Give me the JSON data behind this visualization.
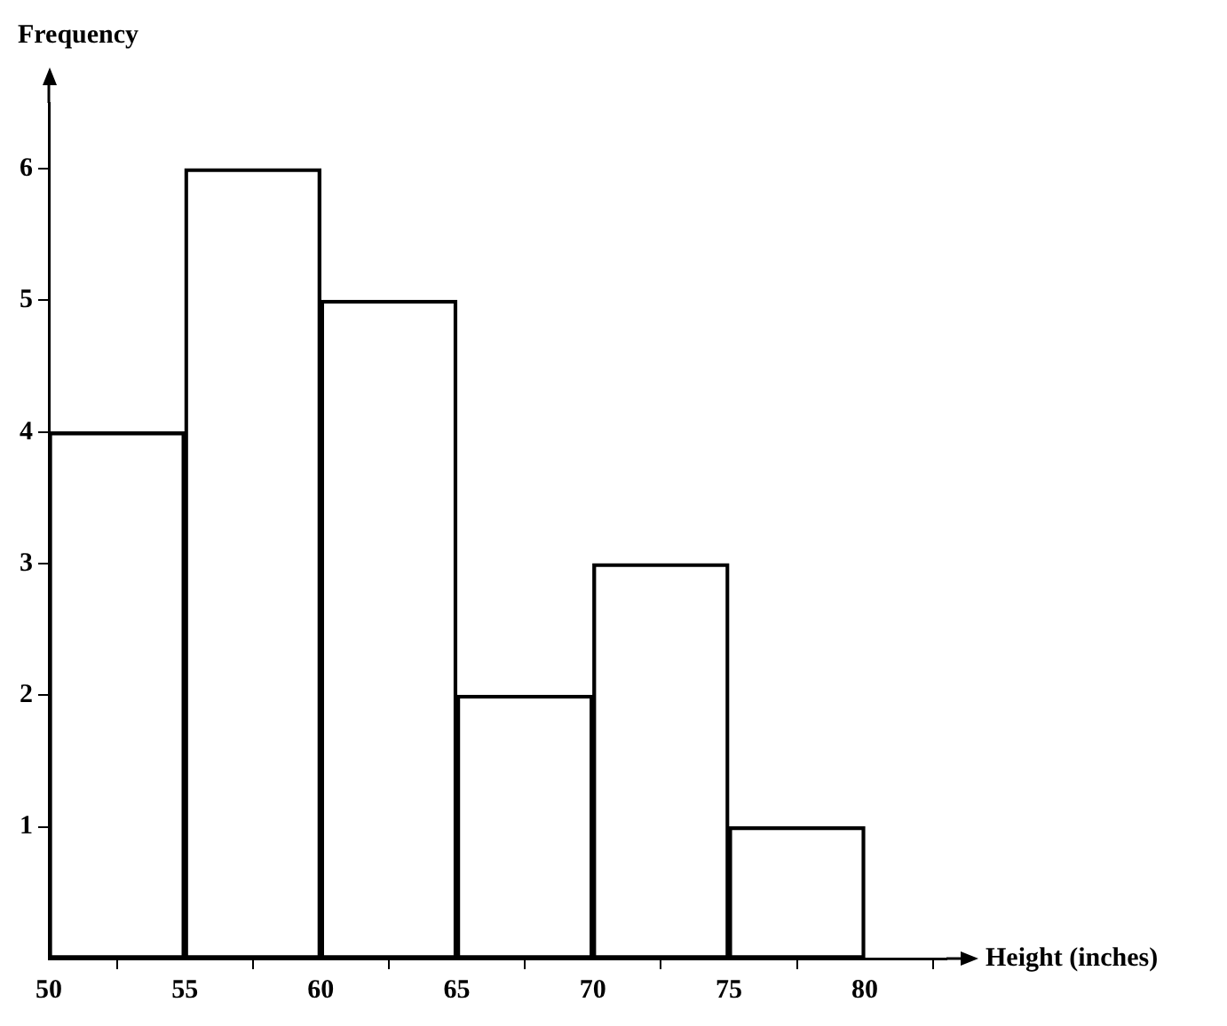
{
  "chart_data": {
    "type": "histogram",
    "xlabel": "Height (inches)",
    "ylabel": "Frequency",
    "bins": [
      50,
      55,
      60,
      65,
      70,
      75,
      80
    ],
    "values": [
      4,
      6,
      5,
      2,
      3,
      1
    ],
    "color": "#000000",
    "xlim": [
      50,
      83
    ],
    "xticks": [
      50,
      55,
      60,
      65,
      70,
      75,
      80
    ],
    "ylim": [
      0,
      6.5
    ],
    "yticks": [
      1,
      2,
      3,
      4,
      5,
      6
    ],
    "grid": false,
    "legend": false
  }
}
